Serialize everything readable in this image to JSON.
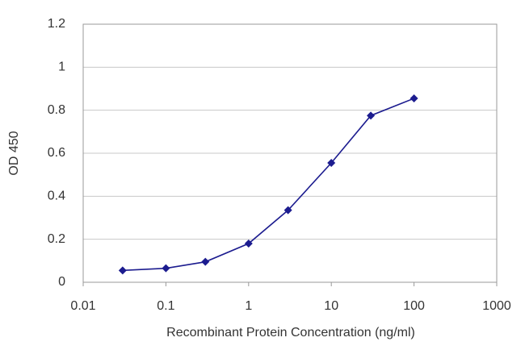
{
  "chart_data": {
    "type": "line",
    "x_label": "Recombinant Protein Concentration (ng/ml)",
    "y_label": "OD 450",
    "x": [
      0.03,
      0.1,
      0.3,
      1,
      3,
      10,
      30,
      100
    ],
    "series": [
      {
        "color": "#1c1c8f",
        "values": [
          0.055,
          0.065,
          0.095,
          0.18,
          0.335,
          0.555,
          0.775,
          0.855
        ]
      }
    ],
    "x_scale": "log",
    "xlim": [
      0.01,
      1000
    ],
    "xticks": [
      0.01,
      0.1,
      1,
      10,
      100,
      1000
    ],
    "ylim": [
      0,
      1.2
    ],
    "yticks": [
      0,
      0.2,
      0.4,
      0.6,
      0.8,
      1,
      1.2
    ],
    "grid": true
  }
}
